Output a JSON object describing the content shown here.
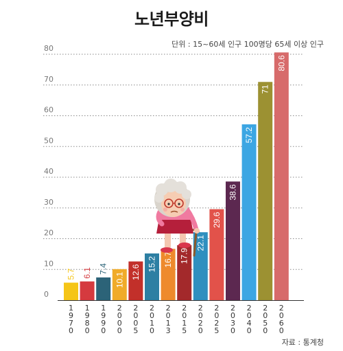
{
  "chart_data": {
    "type": "bar",
    "title": "노년부양비",
    "unit_note": "단위 : 15~60세 인구 100명당 65세 이상 인구",
    "source": "자료 : 통계청",
    "categories": [
      "1970",
      "1980",
      "1990",
      "2000",
      "2005",
      "2010",
      "2013",
      "2015",
      "2020",
      "2025",
      "2030",
      "2040",
      "2050",
      "2060"
    ],
    "values": [
      5.7,
      6.1,
      7.4,
      10.1,
      12.6,
      15.2,
      16.7,
      17.9,
      22.1,
      29.6,
      38.6,
      57.2,
      71,
      80.6
    ],
    "value_labels": [
      "5.7",
      "6.1",
      "7.4",
      "10.1",
      "12.6",
      "15.2",
      "16.7",
      "17.9",
      "22.1",
      "29.6",
      "38.6",
      "57.2",
      "71",
      "80.6"
    ],
    "colors": [
      "#f5c518",
      "#d53a3f",
      "#2c6378",
      "#f0ab29",
      "#c2302a",
      "#2d7fa3",
      "#ee8a2c",
      "#a3292b",
      "#2f8fbf",
      "#e2524a",
      "#5c2850",
      "#3ca6e3",
      "#9c9132",
      "#d76b6b"
    ],
    "label_colors": [
      "#f5c518",
      "#d53a3f",
      "#2c6378",
      "#ffffff",
      "#ffffff",
      "#ffffff",
      "#ffffff",
      "#ffffff",
      "#ffffff",
      "#ffffff",
      "#ffffff",
      "#ffffff",
      "#ffffff",
      "#ffffff"
    ],
    "y_ticks": [
      "0",
      "10",
      "20",
      "30",
      "40",
      "50",
      "60",
      "70",
      "80"
    ],
    "ylim": [
      0,
      80
    ],
    "grid": true,
    "xlabel": "",
    "ylabel": ""
  }
}
